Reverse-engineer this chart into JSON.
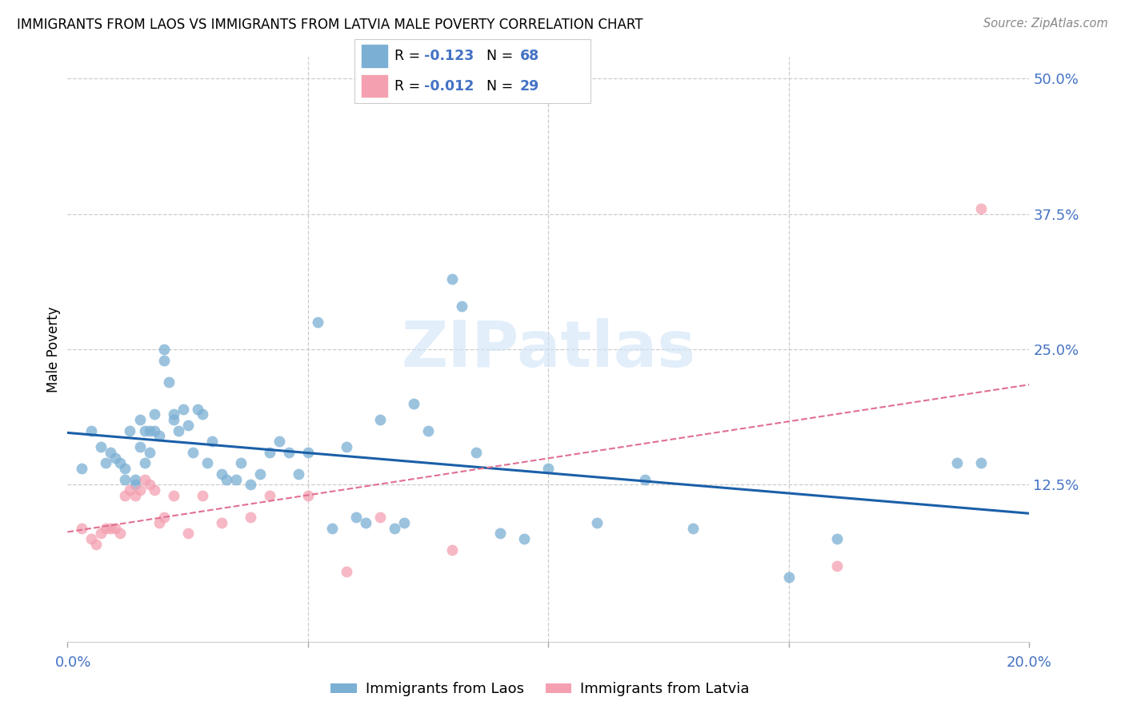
{
  "title": "IMMIGRANTS FROM LAOS VS IMMIGRANTS FROM LATVIA MALE POVERTY CORRELATION CHART",
  "source": "Source: ZipAtlas.com",
  "ylabel": "Male Poverty",
  "yticks": [
    0.0,
    0.125,
    0.25,
    0.375,
    0.5
  ],
  "ytick_labels": [
    "",
    "12.5%",
    "25.0%",
    "37.5%",
    "50.0%"
  ],
  "xlim": [
    0.0,
    0.2
  ],
  "ylim": [
    -0.02,
    0.52
  ],
  "watermark": "ZIPatlas",
  "legend_laos_R": "-0.123",
  "legend_laos_N": "68",
  "legend_latvia_R": "-0.012",
  "legend_latvia_N": "29",
  "laos_color": "#7bafd4",
  "latvia_color": "#f4a0b0",
  "line_laos_color": "#1a5fa8",
  "line_latvia_color": "#e07090",
  "laos_x": [
    0.003,
    0.005,
    0.007,
    0.008,
    0.009,
    0.01,
    0.011,
    0.012,
    0.012,
    0.013,
    0.014,
    0.014,
    0.015,
    0.015,
    0.016,
    0.016,
    0.017,
    0.017,
    0.018,
    0.018,
    0.019,
    0.02,
    0.02,
    0.021,
    0.022,
    0.022,
    0.023,
    0.024,
    0.025,
    0.026,
    0.027,
    0.028,
    0.029,
    0.03,
    0.032,
    0.033,
    0.035,
    0.036,
    0.038,
    0.04,
    0.042,
    0.044,
    0.046,
    0.048,
    0.05,
    0.052,
    0.055,
    0.058,
    0.06,
    0.062,
    0.065,
    0.068,
    0.07,
    0.072,
    0.075,
    0.08,
    0.082,
    0.085,
    0.09,
    0.095,
    0.1,
    0.11,
    0.12,
    0.13,
    0.15,
    0.16,
    0.185,
    0.19
  ],
  "laos_y": [
    0.14,
    0.175,
    0.16,
    0.145,
    0.155,
    0.15,
    0.145,
    0.14,
    0.13,
    0.175,
    0.125,
    0.13,
    0.185,
    0.16,
    0.145,
    0.175,
    0.155,
    0.175,
    0.19,
    0.175,
    0.17,
    0.25,
    0.24,
    0.22,
    0.19,
    0.185,
    0.175,
    0.195,
    0.18,
    0.155,
    0.195,
    0.19,
    0.145,
    0.165,
    0.135,
    0.13,
    0.13,
    0.145,
    0.125,
    0.135,
    0.155,
    0.165,
    0.155,
    0.135,
    0.155,
    0.275,
    0.085,
    0.16,
    0.095,
    0.09,
    0.185,
    0.085,
    0.09,
    0.2,
    0.175,
    0.315,
    0.29,
    0.155,
    0.08,
    0.075,
    0.14,
    0.09,
    0.13,
    0.085,
    0.04,
    0.075,
    0.145,
    0.145
  ],
  "latvia_x": [
    0.003,
    0.005,
    0.006,
    0.007,
    0.008,
    0.009,
    0.01,
    0.011,
    0.012,
    0.013,
    0.014,
    0.015,
    0.016,
    0.017,
    0.018,
    0.019,
    0.02,
    0.022,
    0.025,
    0.028,
    0.032,
    0.038,
    0.042,
    0.05,
    0.058,
    0.065,
    0.08,
    0.16,
    0.19
  ],
  "latvia_y": [
    0.085,
    0.075,
    0.07,
    0.08,
    0.085,
    0.085,
    0.085,
    0.08,
    0.115,
    0.12,
    0.115,
    0.12,
    0.13,
    0.125,
    0.12,
    0.09,
    0.095,
    0.115,
    0.08,
    0.115,
    0.09,
    0.095,
    0.115,
    0.115,
    0.045,
    0.095,
    0.065,
    0.05,
    0.38
  ]
}
